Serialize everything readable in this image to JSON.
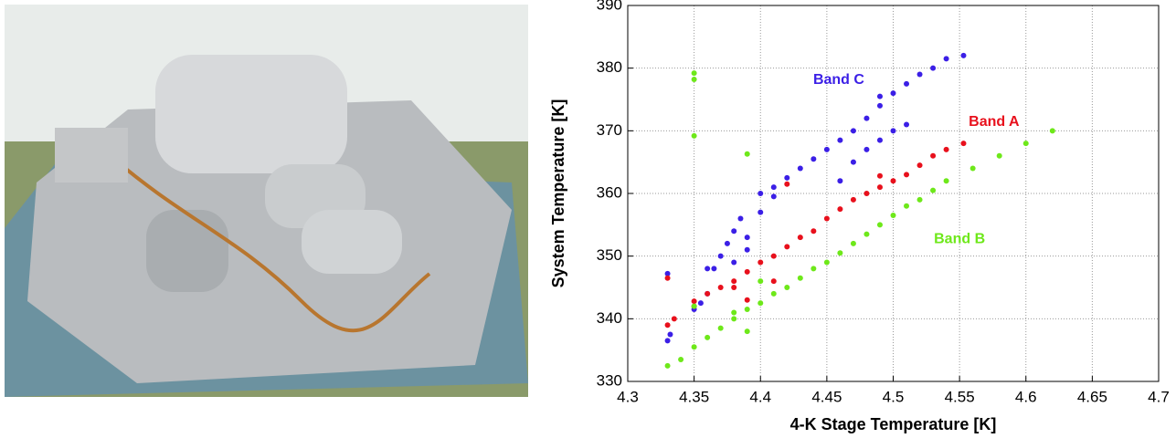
{
  "chart_data": {
    "type": "scatter",
    "xlabel": "4-K Stage Temperature [K]",
    "ylabel": "System Temperature [K]",
    "xlim": [
      4.3,
      4.7
    ],
    "xticks": [
      4.3,
      4.35,
      4.4,
      4.45,
      4.5,
      4.55,
      4.6,
      4.65,
      4.7
    ],
    "ylim": [
      330,
      390
    ],
    "yticks": [
      330,
      340,
      350,
      360,
      370,
      380,
      390
    ],
    "grid": true,
    "series": [
      {
        "name": "Band C",
        "color": "#3b1fe6",
        "label_at": [
          4.459,
          378.1
        ],
        "x": [
          4.33,
          4.332,
          4.33,
          4.35,
          4.355,
          4.36,
          4.365,
          4.37,
          4.375,
          4.38,
          4.385,
          4.39,
          4.4,
          4.41,
          4.42,
          4.43,
          4.44,
          4.45,
          4.46,
          4.47,
          4.48,
          4.49,
          4.5,
          4.51,
          4.52,
          4.53,
          4.54,
          4.553,
          4.47,
          4.48,
          4.49,
          4.5,
          4.51,
          4.36,
          4.38,
          4.39,
          4.4,
          4.41,
          4.46,
          4.49
        ],
        "y": [
          336.5,
          337.5,
          347.2,
          341.5,
          342.5,
          344,
          348,
          350,
          352,
          354,
          356,
          353,
          357,
          361,
          362.5,
          364,
          365.5,
          367,
          368.5,
          370,
          372,
          374,
          376,
          377.5,
          379,
          380,
          381.5,
          382,
          365,
          367,
          368.5,
          370,
          371,
          348,
          349,
          351,
          360,
          359.5,
          362,
          375.5
        ]
      },
      {
        "name": "Band A",
        "color": "#e8101c",
        "label_at": [
          4.576,
          371.4
        ],
        "x": [
          4.33,
          4.335,
          4.35,
          4.36,
          4.37,
          4.38,
          4.39,
          4.4,
          4.41,
          4.42,
          4.43,
          4.44,
          4.45,
          4.46,
          4.47,
          4.48,
          4.49,
          4.5,
          4.51,
          4.52,
          4.53,
          4.54,
          4.553,
          4.39,
          4.41,
          4.42,
          4.49,
          4.33,
          4.38,
          4.35
        ],
        "y": [
          339,
          340,
          342,
          344,
          345,
          346,
          347.5,
          349,
          350,
          351.5,
          353,
          354,
          356,
          357.5,
          359,
          360,
          361,
          362,
          363,
          364.5,
          366,
          367,
          368,
          343,
          346,
          361.5,
          362.8,
          346.5,
          345,
          342.8
        ]
      },
      {
        "name": "Band B",
        "color": "#6ee81a",
        "label_at": [
          4.55,
          352.7
        ],
        "x": [
          4.33,
          4.34,
          4.35,
          4.36,
          4.37,
          4.38,
          4.39,
          4.4,
          4.41,
          4.42,
          4.43,
          4.44,
          4.45,
          4.46,
          4.47,
          4.48,
          4.49,
          4.5,
          4.51,
          4.52,
          4.53,
          4.54,
          4.56,
          4.58,
          4.6,
          4.62,
          4.35,
          4.35,
          4.35,
          4.39,
          4.39,
          4.38,
          4.4,
          4.35
        ],
        "y": [
          332.5,
          333.5,
          335.5,
          337,
          338.5,
          340,
          341.5,
          342.5,
          344,
          345,
          346.5,
          348,
          349,
          350.5,
          352,
          353.5,
          355,
          356.5,
          358,
          359,
          360.5,
          362,
          364,
          366,
          368,
          370,
          379.2,
          378.2,
          369.2,
          366.3,
          338,
          341,
          346,
          342
        ]
      }
    ]
  }
}
